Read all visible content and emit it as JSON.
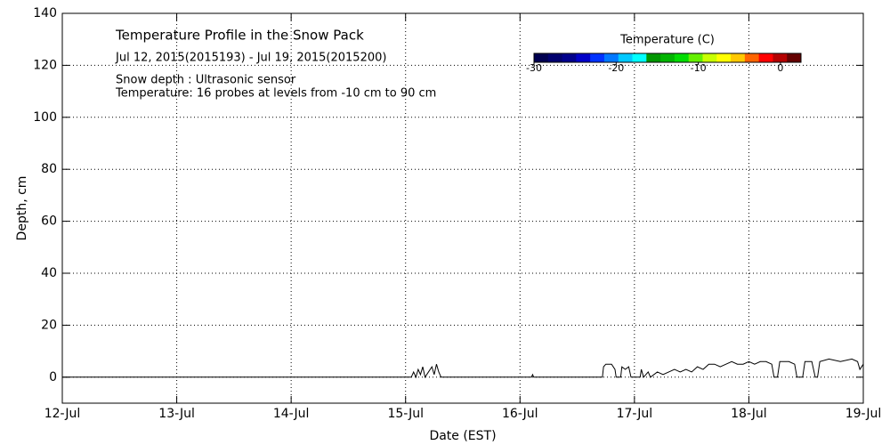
{
  "chart_data": {
    "type": "line",
    "title": "Temperature Profile in the Snow Pack",
    "subtitle": "Jul 12, 2015(2015193) - Jul 19, 2015(2015200)",
    "annotations": [
      "Snow depth : Ultrasonic sensor",
      "Temperature: 16 probes at levels from -10 cm to 90 cm"
    ],
    "xlabel": "Date (EST)",
    "ylabel": "Depth, cm",
    "xlim": [
      193,
      200
    ],
    "xticks": [
      {
        "value": 193,
        "label": "12-Jul"
      },
      {
        "value": 194,
        "label": "13-Jul"
      },
      {
        "value": 195,
        "label": "14-Jul"
      },
      {
        "value": 196,
        "label": "15-Jul"
      },
      {
        "value": 197,
        "label": "16-Jul"
      },
      {
        "value": 198,
        "label": "17-Jul"
      },
      {
        "value": 199,
        "label": "18-Jul"
      },
      {
        "value": 200,
        "label": "19-Jul"
      }
    ],
    "ylim": [
      -10,
      140
    ],
    "yticks": [
      0,
      20,
      40,
      60,
      80,
      100,
      120,
      140
    ],
    "grid": true,
    "series": [
      {
        "name": "Snow depth",
        "color": "#000000",
        "x": [
          193,
          196.05,
          196.07,
          196.09,
          196.11,
          196.13,
          196.15,
          196.17,
          196.2,
          196.23,
          196.25,
          196.27,
          196.29,
          196.31,
          197.1,
          197.11,
          197.12,
          197.72,
          197.73,
          197.75,
          197.8,
          197.83,
          197.84,
          197.88,
          197.89,
          197.92,
          197.95,
          197.97,
          198.05,
          198.06,
          198.08,
          198.12,
          198.14,
          198.2,
          198.25,
          198.3,
          198.35,
          198.4,
          198.45,
          198.5,
          198.55,
          198.6,
          198.65,
          198.7,
          198.75,
          198.8,
          198.85,
          198.9,
          198.95,
          199.0,
          199.05,
          199.1,
          199.15,
          199.2,
          199.22,
          199.25,
          199.27,
          199.35,
          199.4,
          199.42,
          199.47,
          199.49,
          199.55,
          199.58,
          199.6,
          199.62,
          199.7,
          199.8,
          199.9,
          199.95,
          199.97,
          200
        ],
        "values": [
          0,
          0,
          2,
          0,
          3,
          1,
          4,
          0,
          2,
          4,
          1,
          5,
          2,
          0,
          0,
          1,
          0,
          0,
          4,
          5,
          5,
          3,
          0,
          0,
          4,
          3,
          4,
          0,
          0,
          3,
          0,
          2,
          0,
          2,
          1,
          2,
          3,
          2,
          3,
          2,
          4,
          3,
          5,
          5,
          4,
          5,
          6,
          5,
          5,
          6,
          5,
          6,
          6,
          5,
          0,
          0,
          6,
          6,
          5,
          0,
          0,
          6,
          6,
          0,
          0,
          6,
          7,
          6,
          7,
          6,
          3,
          5
        ]
      }
    ],
    "colorbar": {
      "title": "Temperature (C)",
      "clim": [
        -30,
        2.5
      ],
      "ticks": [
        -30,
        -20,
        -10,
        0
      ],
      "colors": [
        "#000050",
        "#00006e",
        "#00008c",
        "#0000c8",
        "#0032ff",
        "#0078ff",
        "#00c8ff",
        "#00ffff",
        "#009600",
        "#00b400",
        "#00dc00",
        "#64f000",
        "#c8ff00",
        "#ffff00",
        "#ffc800",
        "#ff6400",
        "#ff0000",
        "#b40000",
        "#640000"
      ]
    }
  }
}
